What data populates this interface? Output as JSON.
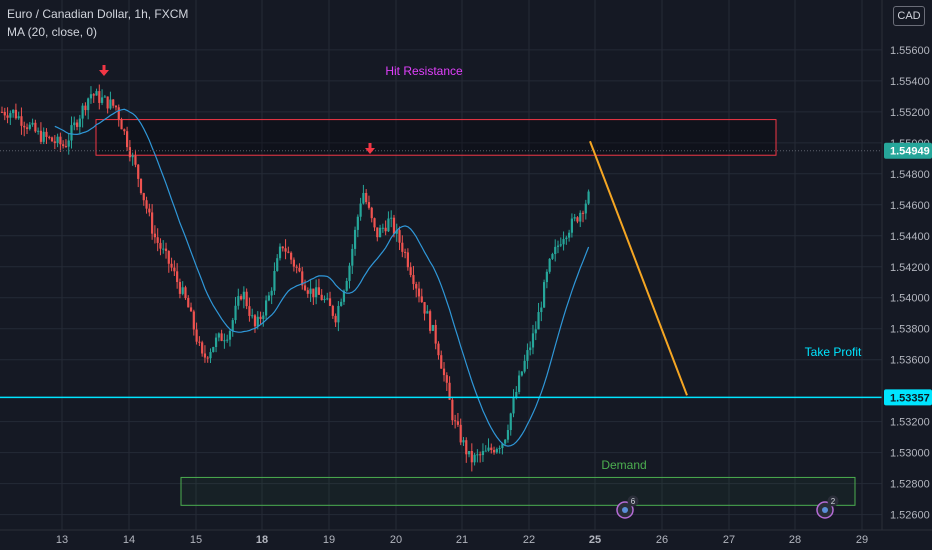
{
  "header": {
    "symbol_title": "Euro / Canadian Dollar, 1h, FXCM",
    "indicator": "MA (20, close, 0)",
    "currency_button": "CAD"
  },
  "annotations": {
    "resistance_label": "Hit Resistance",
    "take_profit_label": "Take Profit",
    "demand_label": "Demand"
  },
  "events": [
    {
      "badge": "6",
      "date": "25"
    },
    {
      "badge": "2",
      "date": "28"
    }
  ],
  "colors": {
    "background": "#151924",
    "up_candle": "#26a69a",
    "down_candle": "#ef5350",
    "ma_line": "#2f97d8",
    "resistance_box": "#f23645",
    "resistance_label": "#e040fb",
    "take_profit_line": "#00e5ff",
    "projection_line": "#f5a623",
    "demand_box": "#4caf50",
    "price_badge": "#26a69a"
  },
  "chart_data": {
    "type": "candlestick",
    "title": "Euro / Canadian Dollar, 1h, FXCM",
    "ylim": [
      1.5252,
      1.5578
    ],
    "y_ticks": [
      "1.52600",
      "1.52800",
      "1.53000",
      "1.53200",
      "1.53600",
      "1.53800",
      "1.54000",
      "1.54200",
      "1.54400",
      "1.54600",
      "1.54800",
      "1.55000",
      "1.55200",
      "1.55400",
      "1.55600"
    ],
    "y_tick_values": [
      1.526,
      1.528,
      1.53,
      1.532,
      1.536,
      1.538,
      1.54,
      1.542,
      1.544,
      1.546,
      1.548,
      1.55,
      1.552,
      1.554,
      1.556
    ],
    "x_ticks": [
      "13",
      "14",
      "15",
      "18",
      "19",
      "20",
      "21",
      "22",
      "25",
      "26",
      "27",
      "28",
      "29"
    ],
    "x_tick_bold": [
      false,
      false,
      false,
      true,
      false,
      false,
      false,
      false,
      true,
      false,
      false,
      false,
      false
    ],
    "current_price": "1.54949",
    "current_price_value": 1.54949,
    "take_profit_price": "1.53357",
    "take_profit_value": 1.53357,
    "ma_period": 20,
    "price_path_keypoints": [
      [
        "13",
        1.552
      ],
      [
        "13",
        1.5505
      ],
      [
        "13",
        1.5498
      ],
      [
        "13",
        1.5532
      ],
      [
        "13",
        1.5523
      ],
      [
        "14",
        1.548
      ],
      [
        "14",
        1.544
      ],
      [
        "14",
        1.542
      ],
      [
        "14",
        1.5395
      ],
      [
        "15",
        1.536
      ],
      [
        "15",
        1.5372
      ],
      [
        "15",
        1.5378
      ],
      [
        "15",
        1.5405
      ],
      [
        "15",
        1.538
      ],
      [
        "18",
        1.54
      ],
      [
        "18",
        1.5435
      ],
      [
        "18",
        1.542
      ],
      [
        "18",
        1.5405
      ],
      [
        "18",
        1.54
      ],
      [
        "19",
        1.5388
      ],
      [
        "19",
        1.542
      ],
      [
        "19",
        1.547
      ],
      [
        "19",
        1.544
      ],
      [
        "19",
        1.545
      ],
      [
        "20",
        1.543
      ],
      [
        "20",
        1.54
      ],
      [
        "20",
        1.537
      ],
      [
        "20",
        1.532
      ],
      [
        "21",
        1.5295
      ],
      [
        "21",
        1.53
      ],
      [
        "21",
        1.5308
      ],
      [
        "21",
        1.535
      ],
      [
        "22",
        1.538
      ],
      [
        "22",
        1.542
      ],
      [
        "22",
        1.544
      ],
      [
        "22",
        1.545
      ],
      [
        "22",
        1.5465
      ],
      [
        "25",
        1.549
      ],
      [
        "25",
        1.5493
      ]
    ],
    "resistance_zone": [
      1.5492,
      1.5515
    ],
    "demand_zone": [
      1.5266,
      1.5284
    ],
    "projection": {
      "from": [
        "25",
        1.5501
      ],
      "to": [
        "26",
        1.5337
      ]
    }
  }
}
